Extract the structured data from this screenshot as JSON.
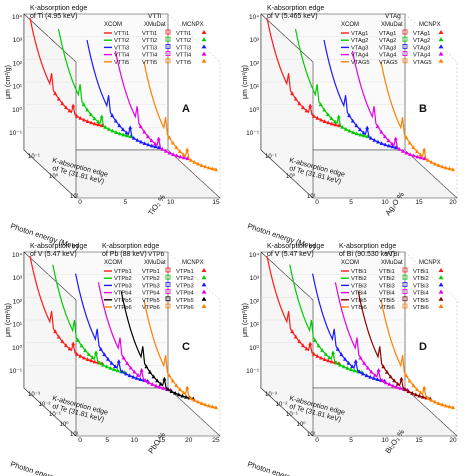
{
  "figure": {
    "panels": [
      {
        "letter": "A",
        "edge_top_lines": [
          "K-absorption edge",
          "of Ti (4.95 keV)"
        ],
        "edge_bottom_lines": [
          "K-absorption edge",
          "of Te (31.81 keV)"
        ],
        "legend": {
          "group_title": "VTTi",
          "col_titles": [
            "XCOM",
            "XMuDat",
            "MCNPX"
          ],
          "xcom": [
            "VTTi1",
            "VTTi2",
            "VTTi3",
            "VTTi4",
            "VTTi5"
          ],
          "xmudat": [
            "VTTi1",
            "VTTi2",
            "VTTi3",
            "VTTi4",
            "VTTi5"
          ],
          "mcnpx": [
            "VTTi1",
            "VTTi2",
            "VTTi3",
            "VTTi4",
            "VTTi5"
          ]
        },
        "depth_label": "TiO₂ %",
        "depth_ticks": [
          "0",
          "5",
          "10",
          "15"
        ]
      },
      {
        "letter": "B",
        "edge_top_lines": [
          "K-absorption edge",
          "of V (5.465 keV)"
        ],
        "edge_bottom_lines": [
          "K-absorption edge",
          "of Te (31.81 keV)"
        ],
        "legend": {
          "group_title": "VTAg",
          "col_titles": [
            "XCOM",
            "XMuDat",
            "MCNPX"
          ],
          "xcom": [
            "VTAg1",
            "VTAg2",
            "VTAg3",
            "VTAg4",
            "VTAG5"
          ],
          "xmudat": [
            "VTAg1",
            "VTAg2",
            "VTAg3",
            "VTAg4",
            "VTAG5"
          ],
          "mcnpx": [
            "VTAg1",
            "VTAg2",
            "VTAg3",
            "VTAg4",
            "VTAG5"
          ]
        },
        "depth_label": "Ag₂O %",
        "depth_ticks": [
          "0",
          "5",
          "10",
          "15",
          "20"
        ]
      },
      {
        "letter": "C",
        "edge_top_lines": [
          "K-absorption edge",
          "of V (5.47 keV)"
        ],
        "edge_side_lines": [
          "K-absorption edge",
          "of Pb (88 keV)"
        ],
        "edge_bottom_lines": [
          "K-absorption edge",
          "of Te (31.81 keV)"
        ],
        "legend": {
          "group_title": "VTPb",
          "col_titles": [
            "XCOM",
            "XMuDat",
            "MCNPX"
          ],
          "xcom": [
            "VTPb1",
            "VTPb2",
            "VTPb3",
            "VTPb4",
            "VTPb5",
            "VTPb6"
          ],
          "xmudat": [
            "VTPb1",
            "VTPb2",
            "VTPb3",
            "VTPb4",
            "VTPb5",
            "VTPb6"
          ],
          "mcnpx": [
            "VTPb1",
            "VTPb2",
            "VTPb3",
            "VTPb4",
            "VTPb5",
            "VTPb6"
          ]
        },
        "depth_label": "PbO %",
        "depth_ticks": [
          "0",
          "5",
          "10",
          "15",
          "20",
          "25"
        ]
      },
      {
        "letter": "D",
        "edge_top_lines": [
          "K-absorption edge",
          "of V (5.47 keV)"
        ],
        "edge_side_lines": [
          "K-absorption edge",
          "of Bi (90.530 keV)"
        ],
        "edge_bottom_lines": [
          "K-absorption edge",
          "of Te (31.81 keV)"
        ],
        "legend": {
          "group_title": "VTBi",
          "col_titles": [
            "XCOM",
            "XMuDat",
            "MCNPX"
          ],
          "xcom": [
            "VTBi1",
            "VTBi2",
            "VTBi3",
            "VTBi4",
            "VTBi5",
            "VTBi6"
          ],
          "xmudat": [
            "VTBi1",
            "VTBi2",
            "VTBi3",
            "VTBi4",
            "VTBi5",
            "VTBi6"
          ],
          "mcnpx": [
            "VTBi1",
            "VTBi2",
            "VTBi3",
            "VTBi4",
            "VTBi5",
            "VTBi6"
          ]
        },
        "depth_label": "Bi₂O₃ %",
        "depth_ticks": [
          "0",
          "5",
          "10",
          "15",
          "20"
        ]
      }
    ]
  },
  "chart_data": [
    {
      "type": "line",
      "panel": "A",
      "ylabel": "μm (cm²/g)",
      "xlabel": "Photon energy (MeV)",
      "zlabel": "TiO₂ %",
      "y_scale": "log",
      "x_scale": "log",
      "y_ticks": [
        "10⁻¹",
        "10⁰",
        "10¹",
        "10²",
        "10³",
        "10⁴"
      ],
      "x_ticks": [
        "10⁻¹",
        "10⁰",
        "10¹"
      ],
      "z_ticks": [
        "0",
        "5",
        "10",
        "15"
      ],
      "legend_position": "top-right",
      "series": [
        {
          "name": "VTTi1",
          "color": "#ff1a1a"
        },
        {
          "name": "VTTi2",
          "color": "#00cc00"
        },
        {
          "name": "VTTi3",
          "color": "#1a1aff"
        },
        {
          "name": "VTTi4",
          "color": "#e600e6"
        },
        {
          "name": "VTTi5",
          "color": "#ff8000"
        }
      ]
    },
    {
      "type": "line",
      "panel": "B",
      "ylabel": "μm (cm²/g)",
      "xlabel": "Photon energy (MeV)",
      "zlabel": "Ag₂O %",
      "y_scale": "log",
      "x_scale": "log",
      "y_ticks": [
        "10⁻¹",
        "10⁰",
        "10¹",
        "10²",
        "10³",
        "10⁴"
      ],
      "x_ticks": [
        "10⁻¹",
        "10⁰",
        "10¹"
      ],
      "z_ticks": [
        "0",
        "5",
        "10",
        "15",
        "20"
      ],
      "legend_position": "top-right",
      "series": [
        {
          "name": "VTAg1",
          "color": "#ff1a1a"
        },
        {
          "name": "VTAg2",
          "color": "#00cc00"
        },
        {
          "name": "VTAg3",
          "color": "#1a1aff"
        },
        {
          "name": "VTAg4",
          "color": "#e600e6"
        },
        {
          "name": "VTAG5",
          "color": "#ff8000"
        }
      ]
    },
    {
      "type": "line",
      "panel": "C",
      "ylabel": "μm (cm²/g)",
      "xlabel": "Photon energy (MeV)",
      "zlabel": "PbO %",
      "y_scale": "log",
      "x_scale": "log",
      "y_ticks": [
        "10⁻¹",
        "10⁰",
        "10¹",
        "10²",
        "10³",
        "10⁴"
      ],
      "x_ticks": [
        "10⁻³",
        "10⁻²",
        "10⁻¹",
        "10⁰",
        "10¹"
      ],
      "z_ticks": [
        "0",
        "5",
        "10",
        "15",
        "20",
        "25"
      ],
      "legend_position": "top-right",
      "series": [
        {
          "name": "VTPb1",
          "color": "#ff1a1a"
        },
        {
          "name": "VTPb2",
          "color": "#00cc00"
        },
        {
          "name": "VTPb3",
          "color": "#1a1aff"
        },
        {
          "name": "VTPb4",
          "color": "#e600e6"
        },
        {
          "name": "VTPb5",
          "color": "#000000"
        },
        {
          "name": "VTPb6",
          "color": "#ff8000"
        }
      ]
    },
    {
      "type": "line",
      "panel": "D",
      "ylabel": "μm (cm²/g)",
      "xlabel": "Photon energy (MeV)",
      "zlabel": "Bi₂O₃ %",
      "y_scale": "log",
      "x_scale": "log",
      "y_ticks": [
        "10⁻¹",
        "10⁰",
        "10¹",
        "10²",
        "10³",
        "10⁴"
      ],
      "x_ticks": [
        "10⁻³",
        "10⁻²",
        "10⁻¹",
        "10⁰",
        "10¹"
      ],
      "z_ticks": [
        "0",
        "5",
        "10",
        "15",
        "20"
      ],
      "legend_position": "top-right",
      "series": [
        {
          "name": "VTBi1",
          "color": "#ff1a1a"
        },
        {
          "name": "VTBi2",
          "color": "#00cc00"
        },
        {
          "name": "VTBi3",
          "color": "#1a1aff"
        },
        {
          "name": "VTBi4",
          "color": "#e600e6"
        },
        {
          "name": "VTBi5",
          "color": "#8b0000"
        },
        {
          "name": "VTBi6",
          "color": "#ff8000"
        }
      ]
    }
  ]
}
